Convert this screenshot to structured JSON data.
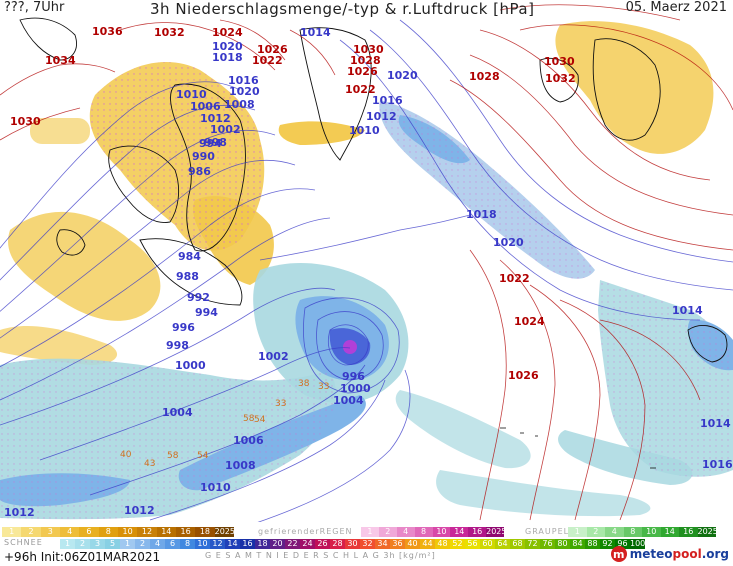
{
  "header": {
    "left": "???, 7Uhr",
    "title": "3h Niederschlagsmenge/-typ & r.Luftdruck [hPa]",
    "date": "05. Maerz 2021"
  },
  "isobar_labels": [
    {
      "text": "1036",
      "type": "high"
    },
    {
      "text": "1034",
      "type": "high"
    },
    {
      "text": "1030",
      "type": "high"
    },
    {
      "text": "1032",
      "type": "high"
    },
    {
      "text": "1024",
      "type": "high"
    },
    {
      "text": "1026",
      "type": "high"
    },
    {
      "text": "1022",
      "type": "high"
    },
    {
      "text": "1030",
      "type": "high"
    },
    {
      "text": "1028",
      "type": "high"
    },
    {
      "text": "1026",
      "type": "high"
    },
    {
      "text": "1022",
      "type": "high"
    },
    {
      "text": "1028",
      "type": "high"
    },
    {
      "text": "1030",
      "type": "high"
    },
    {
      "text": "1032",
      "type": "high"
    },
    {
      "text": "1022",
      "type": "high"
    },
    {
      "text": "1024",
      "type": "high"
    },
    {
      "text": "1026",
      "type": "high"
    },
    {
      "text": "1020",
      "type": "low"
    },
    {
      "text": "1018",
      "type": "low"
    },
    {
      "text": "1014",
      "type": "low"
    },
    {
      "text": "1016",
      "type": "low"
    },
    {
      "text": "1020",
      "type": "low"
    },
    {
      "text": "1010",
      "type": "low"
    },
    {
      "text": "1006",
      "type": "low"
    },
    {
      "text": "1008",
      "type": "low"
    },
    {
      "text": "1012",
      "type": "low"
    },
    {
      "text": "1002",
      "type": "low"
    },
    {
      "text": "998",
      "type": "low"
    },
    {
      "text": "994",
      "type": "low"
    },
    {
      "text": "990",
      "type": "low"
    },
    {
      "text": "986",
      "type": "low"
    },
    {
      "text": "1016",
      "type": "low"
    },
    {
      "text": "1012",
      "type": "low"
    },
    {
      "text": "1010",
      "type": "low"
    },
    {
      "text": "1020",
      "type": "low"
    },
    {
      "text": "1018",
      "type": "low"
    },
    {
      "text": "1020",
      "type": "low"
    },
    {
      "text": "984",
      "type": "low"
    },
    {
      "text": "988",
      "type": "low"
    },
    {
      "text": "992",
      "type": "low"
    },
    {
      "text": "994",
      "type": "low"
    },
    {
      "text": "996",
      "type": "low"
    },
    {
      "text": "998",
      "type": "low"
    },
    {
      "text": "1000",
      "type": "low"
    },
    {
      "text": "1002",
      "type": "low"
    },
    {
      "text": "996",
      "type": "low"
    },
    {
      "text": "1000",
      "type": "low"
    },
    {
      "text": "1004",
      "type": "low"
    },
    {
      "text": "1004",
      "type": "low"
    },
    {
      "text": "1006",
      "type": "low"
    },
    {
      "text": "1008",
      "type": "low"
    },
    {
      "text": "1010",
      "type": "low"
    },
    {
      "text": "1012",
      "type": "low"
    },
    {
      "text": "1012",
      "type": "low"
    },
    {
      "text": "1014",
      "type": "low"
    },
    {
      "text": "1014",
      "type": "low"
    },
    {
      "text": "1016",
      "type": "low"
    }
  ],
  "precip_labels": [
    "38",
    "33",
    "33",
    "58",
    "54",
    "40",
    "58",
    "54",
    "43"
  ],
  "legend": {
    "snow": {
      "title": "SCHNEE",
      "values": [
        "1",
        "2",
        "3",
        "4",
        "6",
        "8",
        "10",
        "12",
        "14",
        "16",
        "18",
        "2025+"
      ],
      "colors": [
        "#f8e898",
        "#f5d870",
        "#f2c850",
        "#eebd38",
        "#e8b020",
        "#e0a010",
        "#d89008",
        "#c88008",
        "#b87000",
        "#a86000",
        "#985000",
        "#704000"
      ]
    },
    "freezing_rain": {
      "title": "gefrierenderREGEN",
      "values": [
        "1",
        "2",
        "4",
        "8",
        "10",
        "14",
        "16",
        "2025+"
      ],
      "colors": [
        "#f8c8e8",
        "#f0a8d8",
        "#e888c8",
        "#e068b8",
        "#d848a8",
        "#c82898",
        "#b01888",
        "#900870"
      ]
    },
    "graupel": {
      "title": "GRAUPEL",
      "values": [
        "1",
        "2",
        "4",
        "8",
        "10",
        "14",
        "16",
        "2025+"
      ],
      "colors": [
        "#c8f0c8",
        "#a8e8a8",
        "#88d888",
        "#68c868",
        "#48b848",
        "#30a830",
        "#209020",
        "#107010"
      ]
    },
    "rain": {
      "values": [
        "1",
        "2",
        "3",
        "5",
        "1",
        "2",
        "4",
        "6",
        "8",
        "10",
        "12",
        "14",
        "16",
        "18",
        "20",
        "22",
        "24",
        "26",
        "28",
        "30",
        "32",
        "34",
        "36",
        "40",
        "44",
        "48",
        "52",
        "56",
        "60",
        "64",
        "68",
        "72",
        "76",
        "80",
        "84",
        "88",
        "92",
        "96",
        "100"
      ],
      "colors": [
        "#b8e8f0",
        "#a8e0ec",
        "#98d8e8",
        "#88d0e4",
        "#a0c8f0",
        "#88b8ec",
        "#70a8e8",
        "#5898e4",
        "#4088e0",
        "#3070d8",
        "#2858c8",
        "#2040b8",
        "#1830a8",
        "#402898",
        "#602088",
        "#801878",
        "#a01068",
        "#c01058",
        "#d82048",
        "#e83838",
        "#f05030",
        "#f06828",
        "#f08020",
        "#f09818",
        "#f0b010",
        "#f0c808",
        "#f0d800",
        "#e8e000",
        "#d0d800",
        "#b8d000",
        "#a0c800",
        "#88c000",
        "#70b800",
        "#58b000",
        "#40a800",
        "#289800",
        "#108800",
        "#007800",
        "#006800"
      ],
      "title": "G E S A M T N I E D E R S C H L A G   3h  [kg/m²]"
    }
  },
  "footer": {
    "forecast": "+96h  Init:06Z01MAR2021",
    "logo_part1": "meteo",
    "logo_part2": "pool",
    "logo_part3": ".org"
  },
  "colors": {
    "ocean": "#ffffff",
    "snow_band": "#f2c84a",
    "rain_light": "#a8d8e0",
    "rain_mid": "#7fb4e8",
    "rain_heavy": "#4a66d8",
    "core": "#b040d8",
    "isobar_low": "#3838c8",
    "isobar_high": "#b00000"
  },
  "icons": {
    "logo": "meteopool-logo-icon"
  }
}
